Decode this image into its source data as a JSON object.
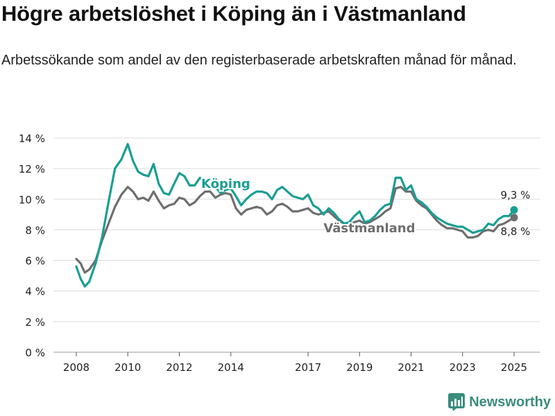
{
  "title": "Högre arbetslöshet i Köping än i Västmanland",
  "subtitle": "Arbetssökande som andel av den registerbaserade arbetskraften månad för månad.",
  "brand": "Newsworthy",
  "colors": {
    "koping": "#1a9e93",
    "vastmanland": "#6e6e6e",
    "grid": "#dcdcdc",
    "brand": "#3a8c7d"
  },
  "chart_data": {
    "type": "line",
    "ylim": [
      0,
      14
    ],
    "y_ticks": [
      0,
      2,
      4,
      6,
      8,
      10,
      12,
      14
    ],
    "y_tick_labels": [
      "0 %",
      "2 %",
      "4 %",
      "6 %",
      "8 %",
      "10 %",
      "12 %",
      "14 %"
    ],
    "x_ticks": [
      2008,
      2010,
      2012,
      2014,
      2017,
      2019,
      2021,
      2023,
      2025
    ],
    "x_tick_labels": [
      "2008",
      "2010",
      "2012",
      "2014",
      "2017",
      "2019",
      "2021",
      "2023",
      "2025"
    ],
    "series": [
      {
        "name": "Köping",
        "end_label": "9,3 %",
        "points": [
          [
            2008.0,
            5.6
          ],
          [
            2008.17,
            4.8
          ],
          [
            2008.33,
            4.3
          ],
          [
            2008.5,
            4.6
          ],
          [
            2008.75,
            5.8
          ],
          [
            2009.0,
            7.5
          ],
          [
            2009.25,
            9.8
          ],
          [
            2009.5,
            12.0
          ],
          [
            2009.75,
            12.6
          ],
          [
            2010.0,
            13.6
          ],
          [
            2010.2,
            12.5
          ],
          [
            2010.4,
            11.8
          ],
          [
            2010.6,
            11.6
          ],
          [
            2010.8,
            11.5
          ],
          [
            2011.0,
            12.3
          ],
          [
            2011.2,
            11.0
          ],
          [
            2011.4,
            10.4
          ],
          [
            2011.6,
            10.3
          ],
          [
            2011.8,
            11.0
          ],
          [
            2012.0,
            11.7
          ],
          [
            2012.2,
            11.5
          ],
          [
            2012.4,
            10.9
          ],
          [
            2012.6,
            10.9
          ],
          [
            2012.8,
            11.4
          ],
          [
            2013.0,
            11.2
          ],
          [
            2013.2,
            10.7
          ],
          [
            2013.4,
            10.8
          ],
          [
            2013.6,
            10.4
          ],
          [
            2013.8,
            10.6
          ],
          [
            2014.0,
            10.7
          ],
          [
            2014.2,
            10.2
          ],
          [
            2014.4,
            9.6
          ],
          [
            2014.6,
            10.0
          ],
          [
            2014.8,
            10.3
          ],
          [
            2015.0,
            10.5
          ],
          [
            2015.2,
            10.5
          ],
          [
            2015.4,
            10.4
          ],
          [
            2015.6,
            10.0
          ],
          [
            2015.8,
            10.6
          ],
          [
            2016.0,
            10.8
          ],
          [
            2016.2,
            10.5
          ],
          [
            2016.4,
            10.2
          ],
          [
            2016.6,
            10.1
          ],
          [
            2016.8,
            10.0
          ],
          [
            2017.0,
            10.3
          ],
          [
            2017.2,
            9.6
          ],
          [
            2017.4,
            9.4
          ],
          [
            2017.6,
            9.0
          ],
          [
            2017.8,
            9.4
          ],
          [
            2018.0,
            9.1
          ],
          [
            2018.2,
            8.7
          ],
          [
            2018.4,
            8.4
          ],
          [
            2018.6,
            8.5
          ],
          [
            2018.8,
            8.9
          ],
          [
            2019.0,
            9.2
          ],
          [
            2019.2,
            8.5
          ],
          [
            2019.4,
            8.6
          ],
          [
            2019.6,
            8.9
          ],
          [
            2019.8,
            9.3
          ],
          [
            2020.0,
            9.6
          ],
          [
            2020.2,
            9.7
          ],
          [
            2020.4,
            11.4
          ],
          [
            2020.6,
            11.4
          ],
          [
            2020.8,
            10.6
          ],
          [
            2021.0,
            10.9
          ],
          [
            2021.2,
            10.0
          ],
          [
            2021.4,
            9.8
          ],
          [
            2021.6,
            9.5
          ],
          [
            2021.8,
            9.1
          ],
          [
            2022.0,
            8.8
          ],
          [
            2022.2,
            8.6
          ],
          [
            2022.4,
            8.4
          ],
          [
            2022.6,
            8.3
          ],
          [
            2022.8,
            8.2
          ],
          [
            2023.0,
            8.2
          ],
          [
            2023.2,
            8.0
          ],
          [
            2023.4,
            7.8
          ],
          [
            2023.6,
            7.9
          ],
          [
            2023.8,
            8.0
          ],
          [
            2024.0,
            8.4
          ],
          [
            2024.2,
            8.3
          ],
          [
            2024.4,
            8.7
          ],
          [
            2024.6,
            8.9
          ],
          [
            2024.8,
            8.9
          ],
          [
            2025.0,
            9.3
          ]
        ]
      },
      {
        "name": "Västmanland",
        "end_label": "8,8 %",
        "points": [
          [
            2008.0,
            6.1
          ],
          [
            2008.17,
            5.8
          ],
          [
            2008.33,
            5.2
          ],
          [
            2008.5,
            5.4
          ],
          [
            2008.75,
            6.0
          ],
          [
            2009.0,
            7.3
          ],
          [
            2009.25,
            8.4
          ],
          [
            2009.5,
            9.5
          ],
          [
            2009.75,
            10.3
          ],
          [
            2010.0,
            10.8
          ],
          [
            2010.2,
            10.5
          ],
          [
            2010.4,
            10.0
          ],
          [
            2010.6,
            10.1
          ],
          [
            2010.8,
            9.9
          ],
          [
            2011.0,
            10.5
          ],
          [
            2011.2,
            9.9
          ],
          [
            2011.4,
            9.4
          ],
          [
            2011.6,
            9.6
          ],
          [
            2011.8,
            9.7
          ],
          [
            2012.0,
            10.1
          ],
          [
            2012.2,
            10.0
          ],
          [
            2012.4,
            9.6
          ],
          [
            2012.6,
            9.8
          ],
          [
            2012.8,
            10.2
          ],
          [
            2013.0,
            10.5
          ],
          [
            2013.2,
            10.5
          ],
          [
            2013.4,
            10.1
          ],
          [
            2013.6,
            10.3
          ],
          [
            2013.8,
            10.4
          ],
          [
            2014.0,
            10.3
          ],
          [
            2014.2,
            9.4
          ],
          [
            2014.4,
            9.0
          ],
          [
            2014.6,
            9.3
          ],
          [
            2014.8,
            9.4
          ],
          [
            2015.0,
            9.5
          ],
          [
            2015.2,
            9.4
          ],
          [
            2015.4,
            9.0
          ],
          [
            2015.6,
            9.2
          ],
          [
            2015.8,
            9.6
          ],
          [
            2016.0,
            9.7
          ],
          [
            2016.2,
            9.5
          ],
          [
            2016.4,
            9.2
          ],
          [
            2016.6,
            9.2
          ],
          [
            2016.8,
            9.3
          ],
          [
            2017.0,
            9.4
          ],
          [
            2017.2,
            9.1
          ],
          [
            2017.4,
            9.0
          ],
          [
            2017.6,
            9.1
          ],
          [
            2017.8,
            9.2
          ],
          [
            2018.0,
            8.9
          ],
          [
            2018.2,
            8.6
          ],
          [
            2018.4,
            8.4
          ],
          [
            2018.6,
            8.4
          ],
          [
            2018.8,
            8.5
          ],
          [
            2019.0,
            8.6
          ],
          [
            2019.2,
            8.4
          ],
          [
            2019.4,
            8.5
          ],
          [
            2019.6,
            8.7
          ],
          [
            2019.8,
            8.9
          ],
          [
            2020.0,
            9.2
          ],
          [
            2020.2,
            9.4
          ],
          [
            2020.4,
            10.7
          ],
          [
            2020.6,
            10.8
          ],
          [
            2020.8,
            10.5
          ],
          [
            2021.0,
            10.5
          ],
          [
            2021.2,
            9.9
          ],
          [
            2021.4,
            9.6
          ],
          [
            2021.6,
            9.4
          ],
          [
            2021.8,
            9.0
          ],
          [
            2022.0,
            8.6
          ],
          [
            2022.2,
            8.3
          ],
          [
            2022.4,
            8.1
          ],
          [
            2022.6,
            8.1
          ],
          [
            2022.8,
            8.0
          ],
          [
            2023.0,
            7.9
          ],
          [
            2023.2,
            7.5
          ],
          [
            2023.4,
            7.5
          ],
          [
            2023.6,
            7.6
          ],
          [
            2023.8,
            7.9
          ],
          [
            2024.0,
            8.0
          ],
          [
            2024.2,
            7.9
          ],
          [
            2024.4,
            8.3
          ],
          [
            2024.6,
            8.4
          ],
          [
            2024.8,
            8.6
          ],
          [
            2025.0,
            8.8
          ]
        ]
      }
    ]
  }
}
